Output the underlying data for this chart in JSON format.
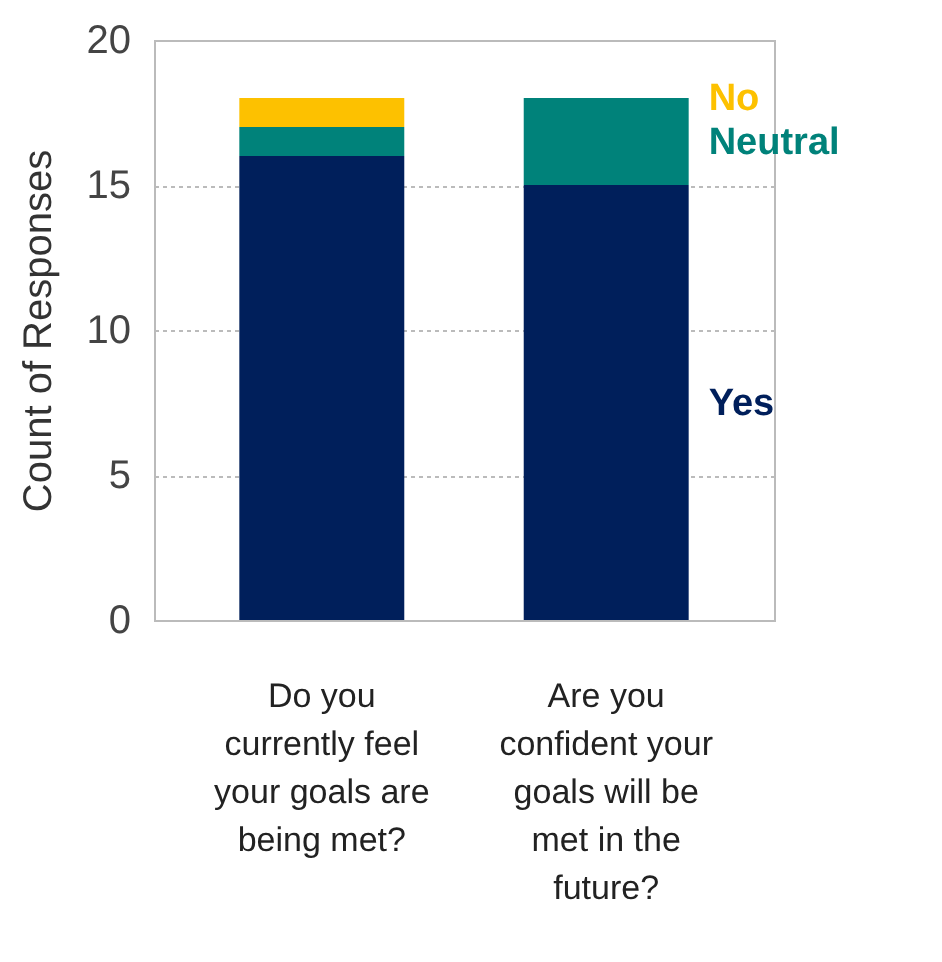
{
  "chart_data": {
    "type": "bar",
    "stacked": true,
    "ylabel": "Count of Responses",
    "categories": [
      "Do you currently feel your goals are being met?",
      "Are you confident your goals will be met in the future?"
    ],
    "series": [
      {
        "name": "Yes",
        "color": "#001f5b",
        "values": [
          16,
          15
        ]
      },
      {
        "name": "Neutral",
        "color": "#00827a",
        "values": [
          1,
          3
        ]
      },
      {
        "name": "No",
        "color": "#fdc100",
        "values": [
          1,
          0
        ]
      }
    ],
    "ylim": [
      0,
      20
    ],
    "yticks": [
      0,
      5,
      10,
      15,
      20
    ],
    "grid": "y",
    "legend": "right"
  }
}
